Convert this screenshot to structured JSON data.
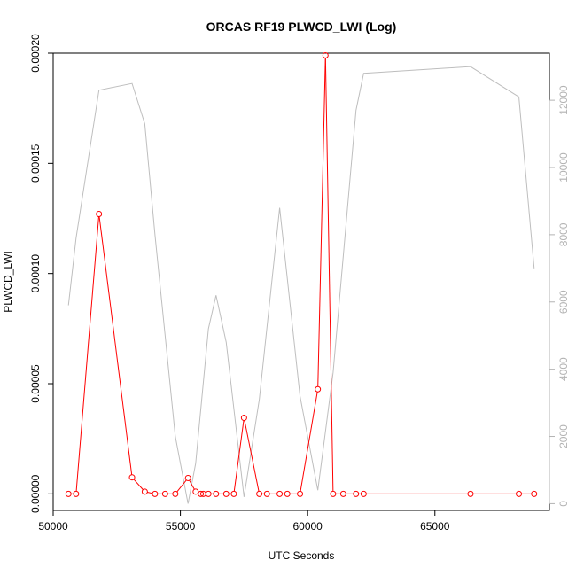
{
  "chart_data": {
    "type": "line",
    "title": "ORCAS RF19 PLWCD_LWI (Log)",
    "xlabel": "UTC Seconds",
    "ylabel": "PLWCD_LWI",
    "ylabel_right": "",
    "xlim": [
      50000,
      69500
    ],
    "ylim": [
      -7.5e-06,
      0.0002
    ],
    "ylim_right": [
      -200,
      13400
    ],
    "x_ticks": [
      50000,
      55000,
      60000,
      65000
    ],
    "x_tick_labels": [
      "50000",
      "55000",
      "60000",
      "65000"
    ],
    "y_ticks": [
      0,
      5e-05,
      0.0001,
      0.00015,
      0.0002
    ],
    "y_tick_labels": [
      "0.00000",
      "0.00005",
      "0.00010",
      "0.00015",
      "0.00020"
    ],
    "y_right_ticks": [
      0,
      2000,
      4000,
      6000,
      8000,
      10000,
      12000
    ],
    "y_right_tick_labels": [
      "0",
      "2000",
      "4000",
      "6000",
      "8000",
      "10000",
      "12000"
    ],
    "grid": false,
    "colors": {
      "primary": "#ff0000",
      "secondary": "#bebebe",
      "axis": "#000000",
      "right_axis": "#b3b3b3"
    },
    "series": [
      {
        "axis": "left",
        "style": "line+points",
        "x": [
          50600,
          50900,
          51800,
          53100,
          53600,
          54000,
          54400,
          54800,
          55300,
          55600,
          55800,
          55900,
          56100,
          56400,
          56800,
          57100,
          57500,
          58100,
          58400,
          58900,
          59200,
          59700,
          60400,
          60700,
          61000,
          61400,
          61900,
          62200,
          66400,
          68300,
          68900
        ],
        "y": [
          0,
          0,
          0.000127,
          7.5e-06,
          1e-06,
          0,
          0,
          0,
          7.2e-06,
          1e-06,
          0,
          0,
          0,
          0,
          0,
          0,
          3.45e-05,
          0,
          0,
          0,
          0,
          0,
          4.75e-05,
          0.000199,
          0,
          0,
          0,
          0,
          0,
          0,
          0
        ]
      },
      {
        "axis": "right",
        "style": "line",
        "x": [
          50600,
          50900,
          51800,
          53100,
          53600,
          54000,
          54800,
          55300,
          55600,
          56100,
          56400,
          56800,
          57500,
          58100,
          58900,
          59700,
          60400,
          61000,
          61900,
          62200,
          66400,
          68300,
          68900
        ],
        "y": [
          5900,
          7900,
          12300,
          12500,
          11300,
          8000,
          2000,
          0,
          1200,
          5200,
          6200,
          4800,
          200,
          3100,
          8800,
          3200,
          400,
          3900,
          11700,
          12800,
          13000,
          12100,
          7000
        ]
      }
    ]
  }
}
